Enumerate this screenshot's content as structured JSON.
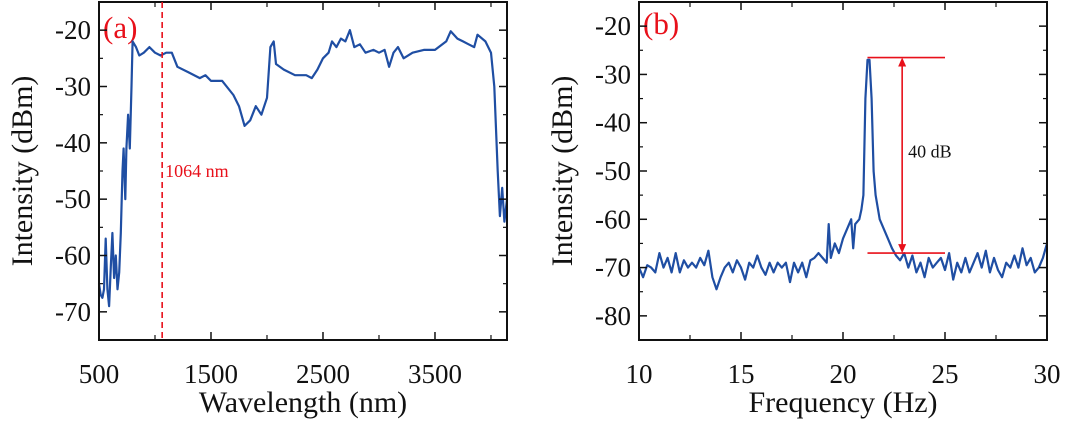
{
  "chart_data": [
    {
      "type": "line",
      "panel_label": "(a)",
      "xlabel": "Wavelength (nm)",
      "ylabel": "Intensity (dBm)",
      "xlim": [
        500,
        4143
      ],
      "ylim": [
        -75,
        -15
      ],
      "xticks": [
        500,
        1500,
        2500,
        3500
      ],
      "xticks_minor": [
        1000,
        2000,
        3000,
        4000
      ],
      "yticks": [
        -20,
        -30,
        -40,
        -50,
        -60,
        -70
      ],
      "grid": false,
      "line_color": "#1f4ea3",
      "annotation": {
        "text": "1064 nm",
        "x": 1064,
        "color": "#e8101a",
        "style": "dashed-vertical"
      },
      "series": [
        {
          "name": "spectrum",
          "x": [
            500,
            515,
            530,
            545,
            560,
            575,
            590,
            605,
            620,
            635,
            650,
            665,
            680,
            695,
            710,
            720,
            735,
            745,
            760,
            775,
            790,
            800,
            830,
            860,
            900,
            950,
            1000,
            1050,
            1100,
            1150,
            1200,
            1300,
            1400,
            1450,
            1500,
            1600,
            1700,
            1750,
            1800,
            1850,
            1900,
            1950,
            2000,
            2030,
            2060,
            2080,
            2150,
            2250,
            2350,
            2400,
            2450,
            2500,
            2550,
            2580,
            2620,
            2660,
            2700,
            2740,
            2780,
            2830,
            2880,
            2950,
            3000,
            3050,
            3090,
            3130,
            3170,
            3220,
            3300,
            3400,
            3500,
            3600,
            3640,
            3700,
            3750,
            3800,
            3850,
            3880,
            3950,
            4000,
            4030,
            4060,
            4080,
            4100,
            4120,
            4143
          ],
          "y": [
            -65,
            -67,
            -67.5,
            -66,
            -57,
            -66,
            -69,
            -62,
            -56,
            -64,
            -60,
            -66,
            -63,
            -56,
            -45,
            -41,
            -50,
            -41,
            -35,
            -41,
            -30,
            -22,
            -23,
            -24.5,
            -24,
            -23,
            -24,
            -24.5,
            -24,
            -24,
            -26.5,
            -27.5,
            -28.5,
            -28,
            -29,
            -29,
            -31.5,
            -33.5,
            -37,
            -36,
            -33.5,
            -35,
            -32,
            -23,
            -22,
            -26,
            -27,
            -28,
            -28,
            -28.5,
            -27,
            -25,
            -24,
            -22,
            -23,
            -21.5,
            -22,
            -20,
            -23,
            -22.5,
            -24,
            -23.5,
            -24,
            -23.5,
            -26.5,
            -24,
            -23,
            -25,
            -24,
            -23.5,
            -23.5,
            -22,
            -20.2,
            -21.5,
            -22,
            -22.5,
            -23,
            -20.8,
            -22,
            -24,
            -30,
            -45,
            -53,
            -48,
            -54,
            -50
          ]
        }
      ]
    },
    {
      "type": "line",
      "panel_label": "(b)",
      "xlabel": "Frequency (Hz)",
      "ylabel": "Intensity (dBm)",
      "xlim": [
        10,
        30
      ],
      "ylim": [
        -85,
        -15
      ],
      "xticks": [
        10,
        15,
        20,
        25,
        30
      ],
      "yticks": [
        -20,
        -30,
        -40,
        -50,
        -60,
        -70,
        -80
      ],
      "grid": false,
      "line_color": "#1f4ea3",
      "annotation": {
        "text": "40 dB",
        "arrow_x": 22.9,
        "top": -26.5,
        "bottom": -67,
        "line_x_range": [
          21.2,
          25
        ],
        "color": "#e8101a"
      },
      "series": [
        {
          "name": "RF spectrum",
          "x": [
            10.0,
            10.2,
            10.4,
            10.6,
            10.8,
            11.0,
            11.2,
            11.4,
            11.6,
            11.8,
            12.0,
            12.2,
            12.4,
            12.6,
            12.8,
            13.0,
            13.2,
            13.4,
            13.6,
            13.8,
            14.0,
            14.2,
            14.4,
            14.6,
            14.8,
            15.0,
            15.2,
            15.4,
            15.6,
            15.8,
            16.0,
            16.2,
            16.4,
            16.6,
            16.8,
            17.0,
            17.2,
            17.4,
            17.6,
            17.8,
            18.0,
            18.2,
            18.4,
            18.6,
            18.8,
            19.0,
            19.2,
            19.3,
            19.4,
            19.6,
            19.8,
            20.0,
            20.2,
            20.4,
            20.5,
            20.6,
            20.8,
            20.9,
            21.0,
            21.1,
            21.2,
            21.3,
            21.4,
            21.5,
            21.6,
            21.8,
            22.0,
            22.2,
            22.4,
            22.6,
            22.8,
            23.0,
            23.2,
            23.4,
            23.6,
            23.8,
            24.0,
            24.2,
            24.4,
            24.6,
            24.8,
            25.0,
            25.2,
            25.4,
            25.6,
            25.8,
            26.0,
            26.2,
            26.4,
            26.6,
            26.8,
            27.0,
            27.2,
            27.4,
            27.6,
            27.8,
            28.0,
            28.2,
            28.4,
            28.6,
            28.8,
            29.0,
            29.2,
            29.4,
            29.6,
            29.8,
            30.0
          ],
          "y": [
            -70,
            -72,
            -69.5,
            -70,
            -71,
            -67,
            -70,
            -68,
            -71,
            -67,
            -71,
            -68.5,
            -70,
            -69,
            -70,
            -68,
            -69.5,
            -66.5,
            -72,
            -74.5,
            -72,
            -70,
            -69,
            -71,
            -68.5,
            -70,
            -72.5,
            -69,
            -70,
            -67.5,
            -70,
            -71.5,
            -69,
            -71,
            -69,
            -70,
            -69,
            -73,
            -69,
            -71,
            -69,
            -72,
            -68.5,
            -68,
            -67,
            -68,
            -69,
            -61,
            -68,
            -65,
            -67,
            -64,
            -62,
            -60,
            -66,
            -61,
            -60,
            -58,
            -55,
            -35,
            -27,
            -27,
            -35,
            -50,
            -55,
            -60,
            -62,
            -64,
            -66,
            -67.5,
            -68.5,
            -67,
            -70,
            -67.5,
            -71,
            -69,
            -72,
            -68,
            -70,
            -69,
            -68,
            -70.5,
            -67,
            -72.5,
            -69,
            -71,
            -68,
            -71,
            -69,
            -67,
            -70,
            -66.5,
            -71,
            -68,
            -70.5,
            -72,
            -69,
            -70,
            -67.5,
            -70,
            -66,
            -69.5,
            -68,
            -71,
            -70,
            -68,
            -65
          ]
        }
      ]
    }
  ]
}
